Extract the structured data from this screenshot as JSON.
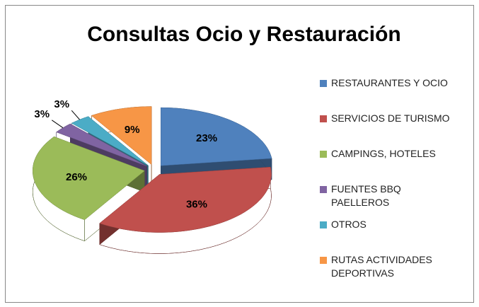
{
  "chart_data": {
    "type": "pie",
    "title": "Consultas Ocio y Restauración",
    "categories": [
      "RESTAURANTES Y OCIO",
      "SERVICIOS DE TURISMO",
      "CAMPINGS, HOTELES",
      "FUENTES BBQ PAELLEROS",
      "OTROS",
      "RUTAS ACTIVIDADES DEPORTIVAS"
    ],
    "values": [
      23,
      36,
      26,
      3,
      3,
      9
    ],
    "value_labels": [
      "23%",
      "36%",
      "26%",
      "3%",
      "3%",
      "9%"
    ],
    "colors": [
      "#4f81bd",
      "#c0504d",
      "#9bbb59",
      "#8064a2",
      "#4bacc6",
      "#f79646"
    ],
    "legend": "right"
  }
}
